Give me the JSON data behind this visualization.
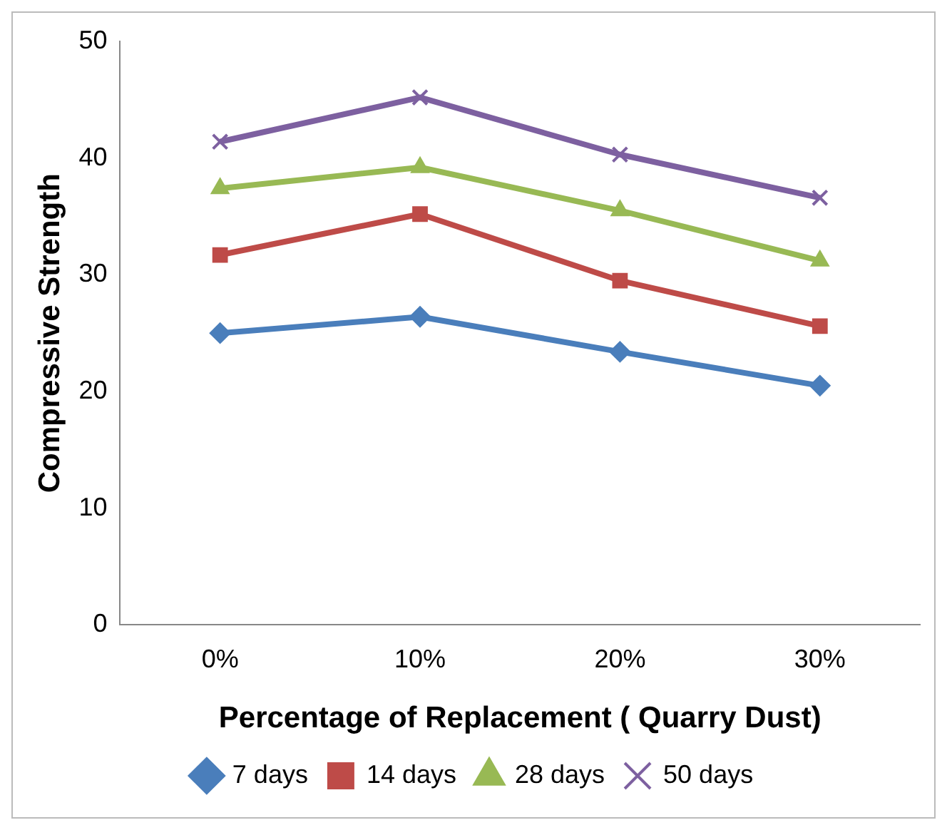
{
  "chart_data": {
    "type": "line",
    "xlabel": "Percentage of Replacement ( Quarry Dust)",
    "ylabel": "Compressive Strength",
    "categories": [
      "0%",
      "10%",
      "20%",
      "30%"
    ],
    "series": [
      {
        "name": "7 days",
        "color": "#4a7ebb",
        "marker": "diamond",
        "values": [
          25.0,
          26.4,
          23.4,
          20.5
        ]
      },
      {
        "name": "14 days",
        "color": "#be4b48",
        "marker": "square",
        "values": [
          31.7,
          35.2,
          29.5,
          25.6
        ]
      },
      {
        "name": "28 days",
        "color": "#98b954",
        "marker": "triangle",
        "values": [
          37.4,
          39.2,
          35.5,
          31.2
        ]
      },
      {
        "name": "50 days",
        "color": "#7d60a0",
        "marker": "cross",
        "values": [
          41.4,
          45.2,
          40.3,
          36.6
        ]
      }
    ],
    "ylim": [
      0,
      50
    ],
    "yticks": [
      0,
      10,
      20,
      30,
      40,
      50
    ],
    "grid": false,
    "legend": "bottom",
    "line_style": "solid"
  }
}
